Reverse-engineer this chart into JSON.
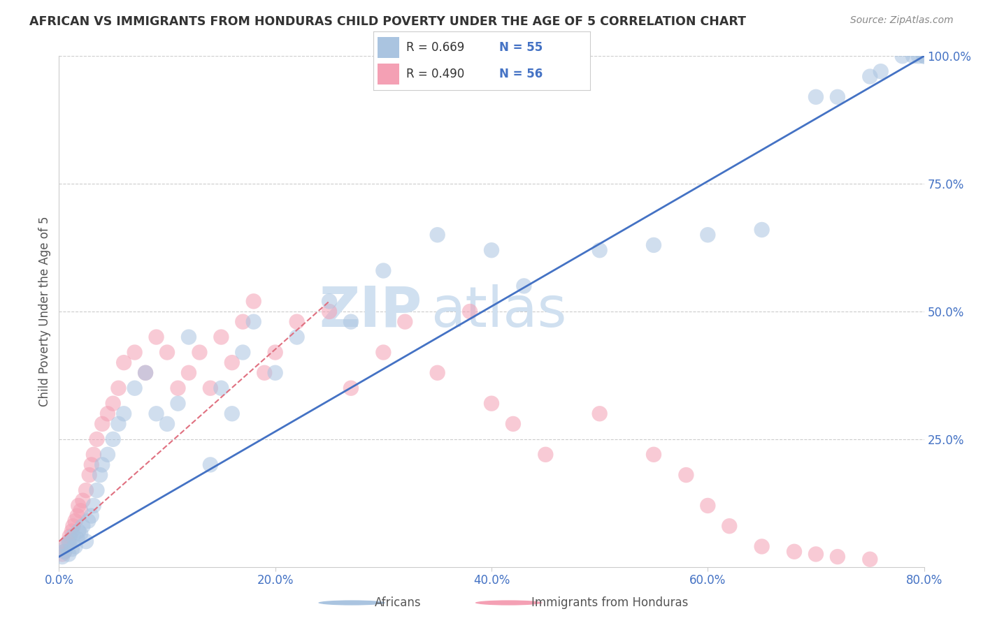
{
  "title": "AFRICAN VS IMMIGRANTS FROM HONDURAS CHILD POVERTY UNDER THE AGE OF 5 CORRELATION CHART",
  "source": "Source: ZipAtlas.com",
  "ylabel": "Child Poverty Under the Age of 5",
  "series1_label": "Africans",
  "series2_label": "Immigrants from Honduras",
  "series1_color": "#aac4e0",
  "series2_color": "#f4a0b4",
  "series1_R": "0.669",
  "series1_N": "55",
  "series2_R": "0.490",
  "series2_N": "56",
  "legend_color": "#4472c4",
  "watermark_zip": "ZIP",
  "watermark_atlas": "atlas",
  "watermark_color": "#d0e0f0",
  "background_color": "#ffffff",
  "grid_color": "#cccccc",
  "title_color": "#333333",
  "axis_color": "#4472c4",
  "trendline1_color": "#4472c4",
  "trendline2_color": "#e07080",
  "xlim": [
    0.0,
    80.0
  ],
  "ylim": [
    0.0,
    100.0
  ],
  "xticklabels": [
    "0.0%",
    "",
    "20.0%",
    "",
    "40.0%",
    "",
    "60.0%",
    "",
    "80.0%"
  ],
  "xtick_vals": [
    0,
    10,
    20,
    30,
    40,
    50,
    60,
    70,
    80
  ],
  "yticklabels_right": [
    "25.0%",
    "50.0%",
    "75.0%",
    "100.0%"
  ],
  "ytick_vals_right": [
    25,
    50,
    75,
    100
  ],
  "series1_x": [
    0.3,
    0.5,
    0.7,
    0.9,
    1.0,
    1.2,
    1.3,
    1.5,
    1.7,
    1.8,
    2.0,
    2.2,
    2.5,
    2.7,
    3.0,
    3.2,
    3.5,
    3.8,
    4.0,
    4.5,
    5.0,
    5.5,
    6.0,
    7.0,
    8.0,
    9.0,
    10.0,
    11.0,
    12.0,
    14.0,
    15.0,
    16.0,
    17.0,
    18.0,
    20.0,
    22.0,
    25.0,
    27.0,
    30.0,
    35.0,
    40.0,
    43.0,
    50.0,
    55.0,
    60.0,
    65.0,
    70.0,
    72.0,
    75.0,
    76.0,
    78.0,
    79.0,
    79.5,
    80.0,
    80.0
  ],
  "series1_y": [
    2.0,
    3.0,
    4.0,
    2.5,
    5.0,
    3.5,
    6.0,
    4.0,
    5.5,
    7.0,
    6.5,
    8.0,
    5.0,
    9.0,
    10.0,
    12.0,
    15.0,
    18.0,
    20.0,
    22.0,
    25.0,
    28.0,
    30.0,
    35.0,
    38.0,
    30.0,
    28.0,
    32.0,
    45.0,
    20.0,
    35.0,
    30.0,
    42.0,
    48.0,
    38.0,
    45.0,
    52.0,
    48.0,
    58.0,
    65.0,
    62.0,
    55.0,
    62.0,
    63.0,
    65.0,
    66.0,
    92.0,
    92.0,
    96.0,
    97.0,
    100.0,
    100.0,
    100.0,
    100.0,
    100.0
  ],
  "series2_x": [
    0.3,
    0.5,
    0.7,
    0.9,
    1.0,
    1.2,
    1.3,
    1.5,
    1.7,
    1.8,
    2.0,
    2.2,
    2.5,
    2.8,
    3.0,
    3.2,
    3.5,
    4.0,
    4.5,
    5.0,
    5.5,
    6.0,
    7.0,
    8.0,
    9.0,
    10.0,
    11.0,
    12.0,
    13.0,
    14.0,
    15.0,
    16.0,
    17.0,
    18.0,
    19.0,
    20.0,
    22.0,
    25.0,
    27.0,
    30.0,
    32.0,
    35.0,
    38.0,
    40.0,
    42.0,
    45.0,
    50.0,
    55.0,
    58.0,
    60.0,
    62.0,
    65.0,
    68.0,
    70.0,
    72.0,
    75.0
  ],
  "series2_y": [
    2.5,
    3.0,
    4.5,
    5.0,
    6.0,
    7.0,
    8.0,
    9.0,
    10.0,
    12.0,
    11.0,
    13.0,
    15.0,
    18.0,
    20.0,
    22.0,
    25.0,
    28.0,
    30.0,
    32.0,
    35.0,
    40.0,
    42.0,
    38.0,
    45.0,
    42.0,
    35.0,
    38.0,
    42.0,
    35.0,
    45.0,
    40.0,
    48.0,
    52.0,
    38.0,
    42.0,
    48.0,
    50.0,
    35.0,
    42.0,
    48.0,
    38.0,
    50.0,
    32.0,
    28.0,
    22.0,
    30.0,
    22.0,
    18.0,
    12.0,
    8.0,
    4.0,
    3.0,
    2.5,
    2.0,
    1.5
  ],
  "trendline1_x": [
    0.0,
    80.0
  ],
  "trendline1_y": [
    2.0,
    100.0
  ],
  "trendline2_x": [
    0.0,
    25.0
  ],
  "trendline2_y": [
    5.0,
    52.0
  ]
}
